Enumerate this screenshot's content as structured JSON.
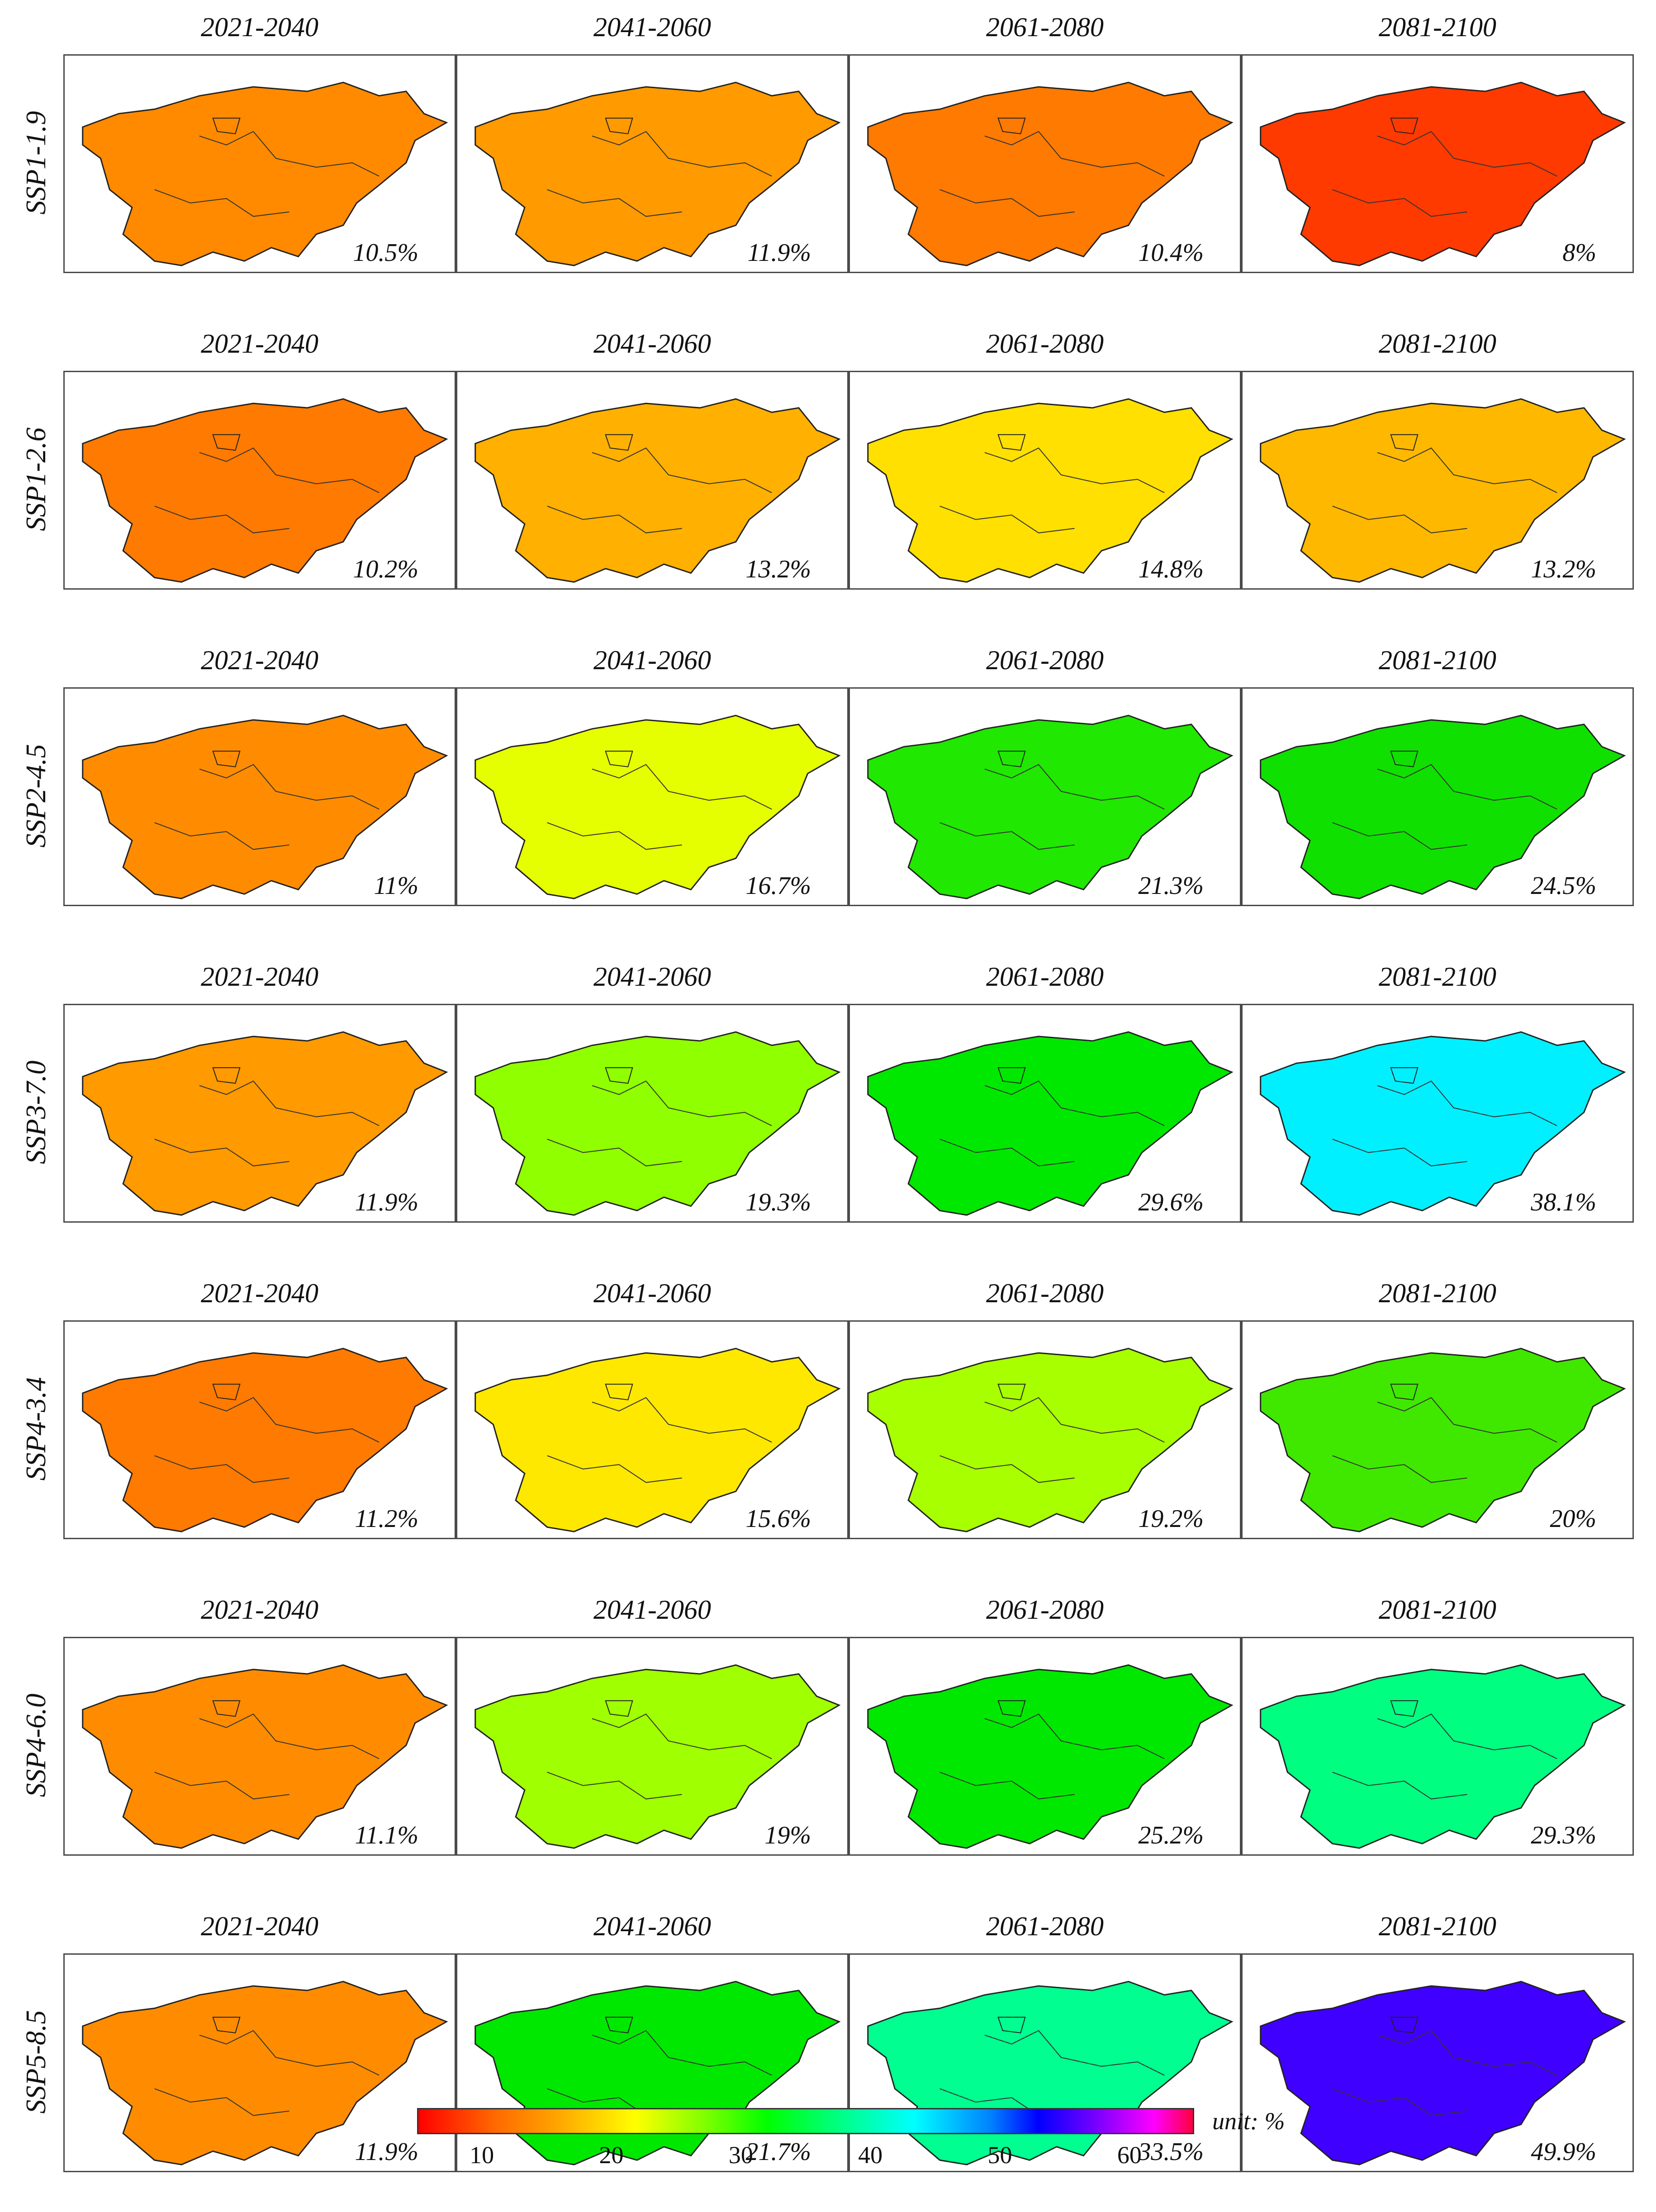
{
  "periods": [
    "2021-2040",
    "2041-2060",
    "2061-2080",
    "2081-2100"
  ],
  "scenarios": [
    {
      "label": "SSP1-1.9",
      "percents": [
        "10.5%",
        "11.9%",
        "10.4%",
        "8%"
      ],
      "fills": [
        "#ff8a00",
        "#ff9a00",
        "#ff7a00",
        "#ff3a00"
      ]
    },
    {
      "label": "SSP1-2.6",
      "percents": [
        "10.2%",
        "13.2%",
        "14.8%",
        "13.2%"
      ],
      "fills": [
        "#ff7a00",
        "#ffb000",
        "#ffe000",
        "#ffb800"
      ]
    },
    {
      "label": "SSP2-4.5",
      "percents": [
        "11%",
        "16.7%",
        "21.3%",
        "24.5%"
      ],
      "fills": [
        "#ff8c00",
        "#e6ff00",
        "#20e800",
        "#10e000"
      ]
    },
    {
      "label": "SSP3-7.0",
      "percents": [
        "11.9%",
        "19.3%",
        "29.6%",
        "38.1%"
      ],
      "fills": [
        "#ff9a00",
        "#90ff00",
        "#00e800",
        "#00f0ff"
      ]
    },
    {
      "label": "SSP4-3.4",
      "percents": [
        "11.2%",
        "15.6%",
        "19.2%",
        "20%"
      ],
      "fills": [
        "#ff7a00",
        "#ffe800",
        "#a8ff00",
        "#40e800"
      ]
    },
    {
      "label": "SSP4-6.0",
      "percents": [
        "11.1%",
        "19%",
        "25.2%",
        "29.3%"
      ],
      "fills": [
        "#ff8c00",
        "#a0ff00",
        "#00e800",
        "#00ff80"
      ]
    },
    {
      "label": "SSP5-8.5",
      "percents": [
        "11.9%",
        "21.7%",
        "33.5%",
        "49.9%"
      ],
      "fills": [
        "#ff8c00",
        "#00e800",
        "#00ff90",
        "#4000ff"
      ]
    }
  ],
  "colorbar": {
    "unit": "unit: %",
    "ticks": [
      "10",
      "20",
      "30",
      "40",
      "50",
      "60"
    ]
  }
}
